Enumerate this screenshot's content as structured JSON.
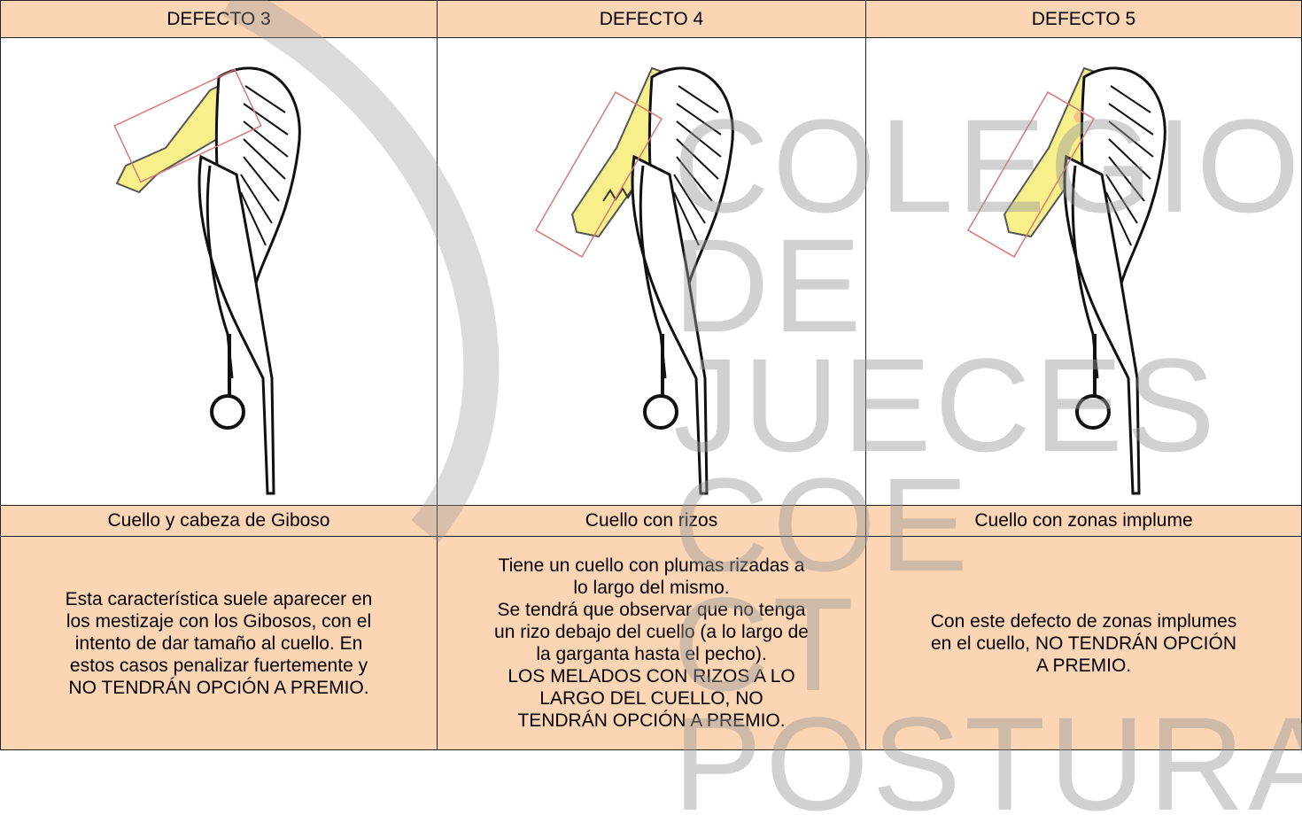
{
  "table": {
    "headers": [
      "DEFECTO 3",
      "DEFECTO 4",
      "DEFECTO 5"
    ],
    "captions": [
      "Cuello y cabeza de Giboso",
      "Cuello con rizos",
      "Cuello con zonas implume"
    ],
    "descriptions": [
      [
        "Esta característica suele aparecer en",
        "los mestizaje con los Gibosos, con el",
        "intento de dar tamaño al cuello. En",
        "estos casos penalizar fuertemente y",
        "NO TENDRÁN OPCIÓN A PREMIO."
      ],
      [
        "Tiene un cuello con plumas rizadas a",
        "lo largo del mismo.",
        "Se tendrá que observar que no tenga",
        "un rizo debajo del cuello (a lo largo de",
        "la garganta hasta el pecho).",
        "LOS MELADOS CON RIZOS A LO",
        "LARGO DEL CUELLO, NO",
        "TENDRÁN OPCIÓN A PREMIO."
      ],
      [
        "Con este defecto de zonas implumes",
        "en el cuello, NO TENDRÁN OPCIÓN",
        "A PREMIO."
      ]
    ]
  },
  "watermark": {
    "lines": [
      "COLEGIO DE",
      "JUECES COE",
      "CT POSTURA"
    ]
  }
}
